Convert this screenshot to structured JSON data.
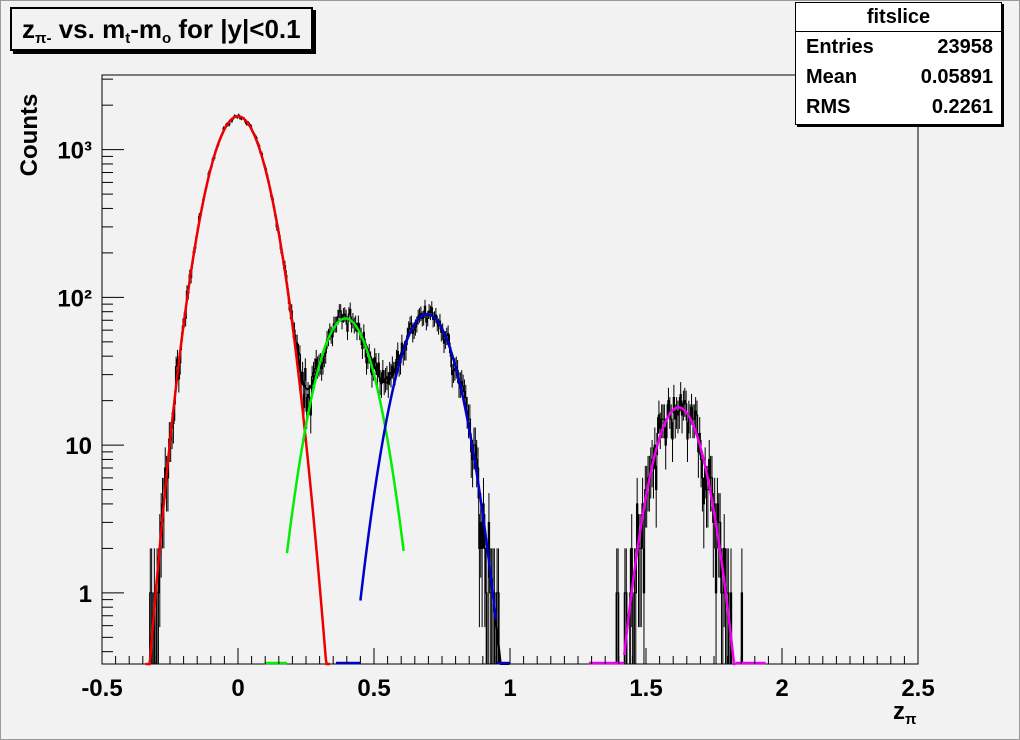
{
  "title": {
    "main": "z",
    "sub": "π-",
    "rest": " vs. m",
    "sub2": "t",
    "rest2": "-m",
    "sub3": "o",
    "rest3": " for |y|<0.1"
  },
  "stats": {
    "name": "fitslice",
    "entries_label": "Entries",
    "entries": "23958",
    "mean_label": "Mean",
    "mean": "0.05891",
    "rms_label": "RMS",
    "rms": "0.2261"
  },
  "ylabel": "Counts",
  "xlabel": {
    "main": "z",
    "sub": "π"
  },
  "chart_data": {
    "type": "line",
    "x_range": [
      -0.5,
      2.5
    ],
    "y_scale": "log",
    "y_range": [
      0.33,
      3200
    ],
    "x_ticks": [
      -0.5,
      0,
      0.5,
      1,
      1.5,
      2,
      2.5
    ],
    "x_tick_labels": [
      "-0.5",
      "0",
      "0.5",
      "1",
      "1.5",
      "2",
      "2.5"
    ],
    "y_ticks": [
      1,
      10,
      100,
      1000
    ],
    "y_tick_labels": [
      "1",
      "10",
      "10²",
      "10³"
    ],
    "grid": false,
    "colors": {
      "pion": "#ee0000",
      "kaon": "#00ee00",
      "proton": "#0000cc",
      "deuteron": "#ee00ee",
      "total": "#000000",
      "data": "#000000"
    },
    "series": [
      {
        "type": "gaussian",
        "color_key": "pion",
        "amplitude": 1680,
        "mean": 0.0,
        "sigma": 0.0785,
        "x_from": -0.34,
        "x_to": 0.34
      },
      {
        "type": "gaussian",
        "color_key": "kaon",
        "amplitude": 72,
        "mean": 0.395,
        "sigma": 0.0795,
        "x_from": 0.18,
        "x_to": 0.61
      },
      {
        "type": "gaussian",
        "color_key": "proton",
        "amplitude": 77,
        "mean": 0.695,
        "sigma": 0.082,
        "x_from": 0.45,
        "x_to": 0.95
      },
      {
        "type": "gaussian",
        "color_key": "deuteron",
        "amplitude": 18,
        "mean": 1.62,
        "sigma": 0.072,
        "x_from": 1.42,
        "x_to": 1.83
      }
    ],
    "flat_segments": [
      {
        "color_key": "kaon",
        "x": [
          0.1,
          0.18
        ]
      },
      {
        "color_key": "proton",
        "x": [
          0.36,
          0.45
        ]
      },
      {
        "color_key": "proton",
        "x": [
          0.95,
          1.0
        ]
      },
      {
        "color_key": "deuteron",
        "x": [
          1.29,
          1.42
        ]
      },
      {
        "color_key": "deuteron",
        "x": [
          1.83,
          1.94
        ]
      }
    ]
  }
}
